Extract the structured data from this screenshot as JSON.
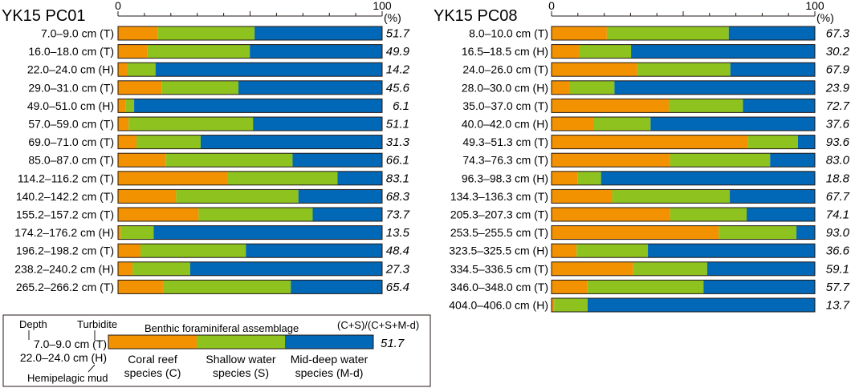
{
  "colors": {
    "coral": "#F39200",
    "shallow": "#8DC21F",
    "middeep": "#0068B7",
    "border": "#231815"
  },
  "chart_data": [
    {
      "type": "stacked-bar-horizontal",
      "title": "YK15 PC01",
      "axis": {
        "min": 0,
        "max": 100,
        "tick_labels": [
          "0",
          "100"
        ],
        "unit": "(%)"
      },
      "series_names": [
        "Coral reef species (C)",
        "Shallow water species (S)",
        "Mid-deep water species (M-d)"
      ],
      "rows": [
        {
          "label": "7.0–9.0 cm (T)",
          "c": 15.0,
          "s": 36.7,
          "md": 48.3,
          "ratio": "51.7"
        },
        {
          "label": "16.0–18.0 cm (T)",
          "c": 11.0,
          "s": 38.9,
          "md": 50.1,
          "ratio": "49.9"
        },
        {
          "label": "22.0–24.0 cm (H)",
          "c": 3.5,
          "s": 10.7,
          "md": 85.8,
          "ratio": "14.2"
        },
        {
          "label": "29.0–31.0 cm (T)",
          "c": 16.5,
          "s": 29.1,
          "md": 54.4,
          "ratio": "45.6"
        },
        {
          "label": "49.0–51.0 cm (H)",
          "c": 2.8,
          "s": 3.3,
          "md": 93.9,
          "ratio": "6.1"
        },
        {
          "label": "57.0–59.0 cm (T)",
          "c": 4.0,
          "s": 47.1,
          "md": 48.9,
          "ratio": "51.1"
        },
        {
          "label": "69.0–71.0 cm (T)",
          "c": 7.0,
          "s": 24.3,
          "md": 68.7,
          "ratio": "31.3"
        },
        {
          "label": "85.0–87.0 cm (T)",
          "c": 18.0,
          "s": 48.1,
          "md": 33.9,
          "ratio": "66.1"
        },
        {
          "label": "114.2–116.2 cm (T)",
          "c": 41.5,
          "s": 41.6,
          "md": 16.9,
          "ratio": "83.1"
        },
        {
          "label": "140.2–142.2 cm (T)",
          "c": 22.0,
          "s": 46.3,
          "md": 31.7,
          "ratio": "68.3"
        },
        {
          "label": "155.2–157.2 cm (T)",
          "c": 30.5,
          "s": 43.2,
          "md": 26.3,
          "ratio": "73.7"
        },
        {
          "label": "174.2–176.2 cm (H)",
          "c": 1.0,
          "s": 12.5,
          "md": 86.5,
          "ratio": "13.5"
        },
        {
          "label": "196.2–198.2 cm (T)",
          "c": 8.5,
          "s": 39.9,
          "md": 51.6,
          "ratio": "48.4"
        },
        {
          "label": "238.2–240.2 cm (H)",
          "c": 5.5,
          "s": 21.8,
          "md": 72.7,
          "ratio": "27.3"
        },
        {
          "label": "265.2–266.2 cm (T)",
          "c": 17.0,
          "s": 48.4,
          "md": 34.6,
          "ratio": "65.4"
        }
      ]
    },
    {
      "type": "stacked-bar-horizontal",
      "title": "YK15 PC08",
      "axis": {
        "min": 0,
        "max": 100,
        "tick_labels": [
          "0",
          "100"
        ],
        "unit": "(%)"
      },
      "series_names": [
        "Coral reef species (C)",
        "Shallow water species (S)",
        "Mid-deep water species (M-d)"
      ],
      "rows": [
        {
          "label": "8.0–10.0 cm (T)",
          "c": 21.0,
          "s": 46.3,
          "md": 32.7,
          "ratio": "67.3"
        },
        {
          "label": "16.5–18.5 cm (H)",
          "c": 10.5,
          "s": 19.7,
          "md": 69.8,
          "ratio": "30.2"
        },
        {
          "label": "24.0–26.0 cm (T)",
          "c": 32.5,
          "s": 35.4,
          "md": 32.1,
          "ratio": "67.9"
        },
        {
          "label": "28.0–30.0 cm (H)",
          "c": 7.0,
          "s": 16.9,
          "md": 76.1,
          "ratio": "23.9"
        },
        {
          "label": "35.0–37.0 cm (T)",
          "c": 44.5,
          "s": 28.2,
          "md": 27.3,
          "ratio": "72.7"
        },
        {
          "label": "40.0–42.0 cm (H)",
          "c": 16.0,
          "s": 21.6,
          "md": 62.4,
          "ratio": "37.6"
        },
        {
          "label": "49.3–51.3 cm (T)",
          "c": 74.5,
          "s": 19.1,
          "md": 6.4,
          "ratio": "93.6"
        },
        {
          "label": "74.3–76.3 cm (T)",
          "c": 45.0,
          "s": 38.0,
          "md": 17.0,
          "ratio": "83.0"
        },
        {
          "label": "96.3–98.3 cm (H)",
          "c": 10.0,
          "s": 8.8,
          "md": 81.2,
          "ratio": "18.8"
        },
        {
          "label": "134.3–136.3 cm (T)",
          "c": 23.0,
          "s": 44.7,
          "md": 32.3,
          "ratio": "67.7"
        },
        {
          "label": "205.3–207.3 cm (T)",
          "c": 45.0,
          "s": 29.1,
          "md": 25.9,
          "ratio": "74.1"
        },
        {
          "label": "253.5–255.5 cm (T)",
          "c": 63.5,
          "s": 29.5,
          "md": 7.0,
          "ratio": "93.0"
        },
        {
          "label": "323.5–325.5 cm (H)",
          "c": 9.5,
          "s": 27.1,
          "md": 63.4,
          "ratio": "36.6"
        },
        {
          "label": "334.5–336.5 cm (T)",
          "c": 31.0,
          "s": 28.1,
          "md": 40.9,
          "ratio": "59.1"
        },
        {
          "label": "346.0–348.0 cm (T)",
          "c": 13.5,
          "s": 44.2,
          "md": 42.3,
          "ratio": "57.7"
        },
        {
          "label": "404.0–406.0 cm (H)",
          "c": 1.0,
          "s": 12.7,
          "md": 86.3,
          "ratio": "13.7"
        }
      ]
    }
  ],
  "legend": {
    "depth_label": "Depth",
    "turbidite_label": "Turbidite",
    "assemblage_label": "Benthic foraminiferal assemblage",
    "ratio_label": "(C+S)/(C+S+M-d)",
    "example_depth_t": "7.0–9.0 cm (T)",
    "example_depth_h": "22.0–24.0 cm (H)",
    "hemipelagic_label": "Hemipelagic mud",
    "example_ratio": "51.7",
    "coral_line1": "Coral reef",
    "coral_line2": "species (C)",
    "shallow_line1": "Shallow water",
    "shallow_line2": "species (S)",
    "middeep_line1": "Mid-deep water",
    "middeep_line2": "species (M-d)"
  }
}
